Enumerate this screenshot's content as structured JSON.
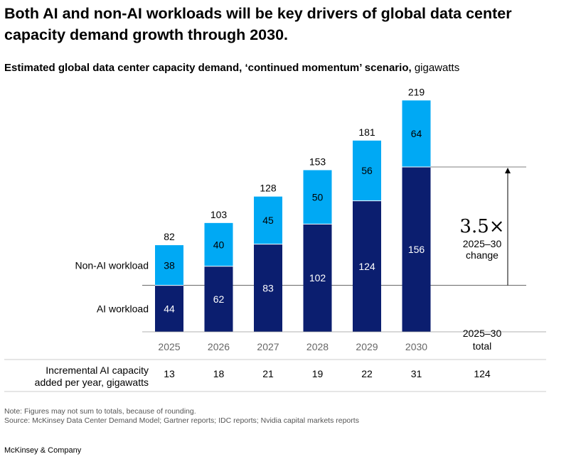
{
  "title": "Both AI and non-AI workloads will be key drivers of global data center capacity demand growth through 2030.",
  "subtitle": {
    "bold": "Estimated global data center capacity demand, ‘continued momentum’ scenario,",
    "unit": " gigawatts"
  },
  "chart_data": {
    "type": "bar",
    "stacked": true,
    "categories": [
      "2025",
      "2026",
      "2027",
      "2028",
      "2029",
      "2030"
    ],
    "series": [
      {
        "name": "AI workload",
        "values": [
          44,
          62,
          83,
          102,
          124,
          156
        ],
        "color": "#0B1E6F"
      },
      {
        "name": "Non-AI workload",
        "values": [
          38,
          40,
          45,
          50,
          56,
          64
        ],
        "color": "#00A9F4"
      }
    ],
    "totals": [
      82,
      103,
      128,
      153,
      181,
      219
    ],
    "total_column_label": "2025–30 total",
    "annotation": {
      "value": "3.5×",
      "label": "2025–30 change"
    },
    "incremental_row": {
      "label": "Incremental AI capacity added per year, gigawatts",
      "values": [
        13,
        18,
        21,
        19,
        22,
        31
      ],
      "total": 124
    },
    "ylim": [
      0,
      230
    ]
  },
  "note": "Note: Figures may not sum to totals, because of rounding.",
  "source": "Source: McKinsey Data Center Demand Model; Gartner reports; IDC reports; Nvidia capital markets reports",
  "brand": "McKinsey & Company"
}
